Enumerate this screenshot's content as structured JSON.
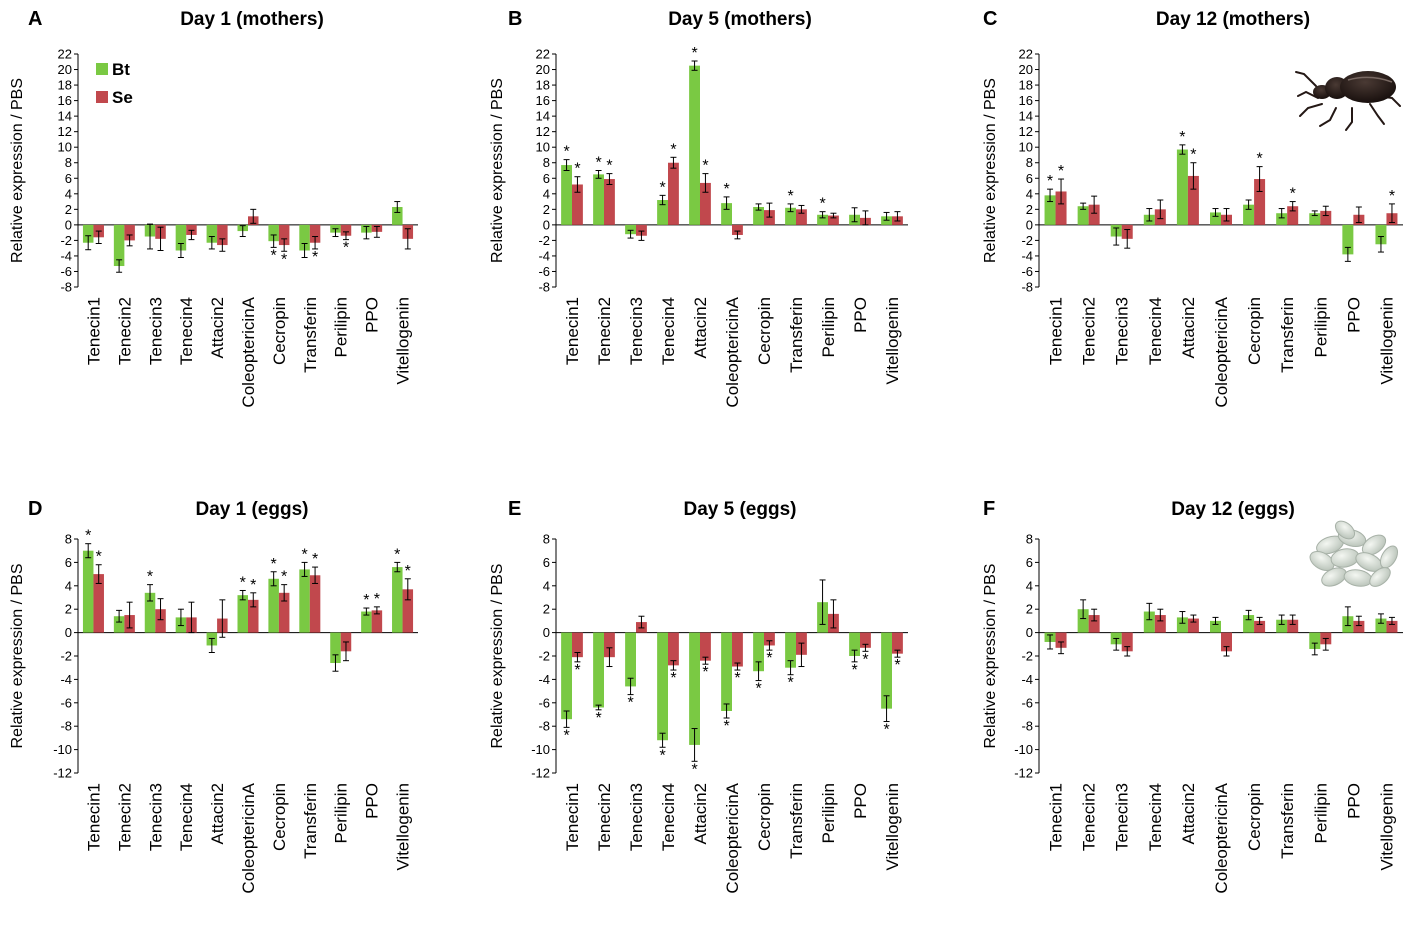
{
  "figure": {
    "colors": {
      "Bt": "#7ac943",
      "Se": "#c1484d",
      "axis": "#000000",
      "error": "#000000"
    },
    "legend": {
      "placement": "top-left of panel A",
      "entries": [
        "Bt",
        "Se"
      ]
    },
    "significance_marker": "*",
    "icons": {
      "panel_C": "beetle-icon",
      "panel_F": "eggs-icon"
    }
  },
  "chart_data": [
    {
      "panel": "A",
      "type": "bar",
      "title": "Day 1 (mothers)",
      "ylabel": "Relative expression / PBS",
      "xlabel": "",
      "ylim": [
        -8,
        22
      ],
      "yticks": [
        -8,
        -6,
        -4,
        -2,
        0,
        2,
        4,
        6,
        8,
        10,
        12,
        14,
        16,
        18,
        20,
        22
      ],
      "categories": [
        "Tenecin1",
        "Tenecin2",
        "Tenecin3",
        "Tenecin4",
        "Attacin2",
        "ColeoptericinA",
        "Cecropin",
        "Transferin",
        "Perilipin",
        "PPO",
        "Vitellogenin"
      ],
      "series": [
        {
          "name": "Bt",
          "values": [
            -2.3,
            -5.3,
            -1.5,
            -3.3,
            -2.3,
            -0.8,
            -2.1,
            -3.3,
            -1.0,
            -1.0,
            2.3
          ],
          "errors": [
            0.9,
            0.8,
            1.6,
            0.9,
            0.8,
            0.7,
            0.8,
            0.9,
            0.5,
            0.8,
            0.7
          ],
          "significant": [
            false,
            false,
            false,
            false,
            false,
            false,
            true,
            false,
            false,
            false,
            false
          ]
        },
        {
          "name": "Se",
          "values": [
            -1.6,
            -2.0,
            -1.8,
            -1.3,
            -2.6,
            1.1,
            -2.6,
            -2.3,
            -1.4,
            -0.9,
            -1.8
          ],
          "errors": [
            0.8,
            0.7,
            1.5,
            0.6,
            0.8,
            0.9,
            0.8,
            0.8,
            0.5,
            0.7,
            1.3
          ],
          "significant": [
            false,
            false,
            false,
            false,
            false,
            false,
            true,
            true,
            true,
            false,
            false
          ]
        }
      ]
    },
    {
      "panel": "B",
      "type": "bar",
      "title": "Day 5 (mothers)",
      "ylabel": "Relative expression / PBS",
      "xlabel": "",
      "ylim": [
        -8,
        22
      ],
      "yticks": [
        -8,
        -6,
        -4,
        -2,
        0,
        2,
        4,
        6,
        8,
        10,
        12,
        14,
        16,
        18,
        20,
        22
      ],
      "categories": [
        "Tenecin1",
        "Tenecin2",
        "Tenecin3",
        "Tenecin4",
        "Attacin2",
        "ColeoptericinA",
        "Cecropin",
        "Transferin",
        "Perilipin",
        "PPO",
        "Vitellogenin"
      ],
      "series": [
        {
          "name": "Bt",
          "values": [
            7.7,
            6.5,
            -1.2,
            3.2,
            20.5,
            2.8,
            2.3,
            2.2,
            1.3,
            1.3,
            1.1
          ],
          "errors": [
            0.7,
            0.5,
            0.5,
            0.6,
            0.6,
            0.8,
            0.4,
            0.5,
            0.4,
            0.9,
            0.5
          ],
          "significant": [
            true,
            true,
            false,
            true,
            true,
            true,
            false,
            true,
            true,
            false,
            false
          ]
        },
        {
          "name": "Se",
          "values": [
            5.2,
            5.9,
            -1.4,
            8.0,
            5.4,
            -1.3,
            1.9,
            2.0,
            1.2,
            0.9,
            1.1
          ],
          "errors": [
            1.0,
            0.7,
            0.6,
            0.7,
            1.2,
            0.5,
            0.9,
            0.5,
            0.3,
            0.9,
            0.6
          ],
          "significant": [
            true,
            true,
            false,
            true,
            true,
            false,
            false,
            false,
            false,
            false,
            false
          ]
        }
      ]
    },
    {
      "panel": "C",
      "type": "bar",
      "title": "Day 12 (mothers)",
      "ylabel": "Relative expression / PBS",
      "xlabel": "",
      "ylim": [
        -8,
        22
      ],
      "yticks": [
        -8,
        -6,
        -4,
        -2,
        0,
        2,
        4,
        6,
        8,
        10,
        12,
        14,
        16,
        18,
        20,
        22
      ],
      "categories": [
        "Tenecin1",
        "Tenecin2",
        "Tenecin3",
        "Tenecin4",
        "Attacin2",
        "ColeoptericinA",
        "Cecropin",
        "Transferin",
        "Perilipin",
        "PPO",
        "Vitellogenin"
      ],
      "series": [
        {
          "name": "Bt",
          "values": [
            3.8,
            2.4,
            -1.5,
            1.3,
            9.7,
            1.6,
            2.6,
            1.5,
            1.5,
            -3.8,
            -2.5
          ],
          "errors": [
            0.8,
            0.4,
            1.1,
            0.8,
            0.6,
            0.5,
            0.6,
            0.6,
            0.3,
            0.9,
            1.0
          ],
          "significant": [
            true,
            false,
            false,
            false,
            true,
            false,
            false,
            false,
            false,
            false,
            false
          ]
        },
        {
          "name": "Se",
          "values": [
            4.3,
            2.6,
            -1.8,
            2.0,
            6.3,
            1.3,
            5.9,
            2.4,
            1.8,
            1.3,
            1.5
          ],
          "errors": [
            1.6,
            1.1,
            1.2,
            1.2,
            1.7,
            0.8,
            1.6,
            0.6,
            0.6,
            1.0,
            1.2
          ],
          "significant": [
            true,
            false,
            false,
            false,
            true,
            false,
            true,
            true,
            false,
            false,
            true
          ]
        }
      ]
    },
    {
      "panel": "D",
      "type": "bar",
      "title": "Day 1 (eggs)",
      "ylabel": "Relative expression / PBS",
      "xlabel": "",
      "ylim": [
        -12,
        8
      ],
      "yticks": [
        -12,
        -10,
        -8,
        -6,
        -4,
        -2,
        0,
        2,
        4,
        6,
        8
      ],
      "categories": [
        "Tenecin1",
        "Tenecin2",
        "Tenecin3",
        "Tenecin4",
        "Attacin2",
        "ColeoptericinA",
        "Cecropin",
        "Transferin",
        "Perilipin",
        "PPO",
        "Vitellogenin"
      ],
      "series": [
        {
          "name": "Bt",
          "values": [
            7.0,
            1.4,
            3.4,
            1.3,
            -1.1,
            3.2,
            4.6,
            5.4,
            -2.6,
            1.8,
            5.6
          ],
          "errors": [
            0.6,
            0.5,
            0.7,
            0.7,
            0.6,
            0.4,
            0.6,
            0.6,
            0.7,
            0.3,
            0.4
          ],
          "significant": [
            true,
            false,
            true,
            false,
            false,
            true,
            true,
            true,
            false,
            true,
            true
          ]
        },
        {
          "name": "Se",
          "values": [
            5.0,
            1.5,
            2.0,
            1.3,
            1.2,
            2.8,
            3.4,
            4.9,
            -1.6,
            1.9,
            3.7
          ],
          "errors": [
            0.8,
            1.1,
            0.9,
            1.3,
            1.6,
            0.6,
            0.7,
            0.7,
            0.8,
            0.3,
            0.9
          ],
          "significant": [
            true,
            false,
            false,
            false,
            false,
            true,
            true,
            true,
            false,
            true,
            true
          ]
        }
      ]
    },
    {
      "panel": "E",
      "type": "bar",
      "title": "Day 5 (eggs)",
      "ylabel": "Relative expression / PBS",
      "xlabel": "",
      "ylim": [
        -12,
        8
      ],
      "yticks": [
        -12,
        -10,
        -8,
        -6,
        -4,
        -2,
        0,
        2,
        4,
        6,
        8
      ],
      "categories": [
        "Tenecin1",
        "Tenecin2",
        "Tenecin3",
        "Tenecin4",
        "Attacin2",
        "ColeoptericinA",
        "Cecropin",
        "Transferin",
        "Perilipin",
        "PPO",
        "Vitellogenin"
      ],
      "series": [
        {
          "name": "Bt",
          "values": [
            -7.4,
            -6.4,
            -4.6,
            -9.2,
            -9.6,
            -6.7,
            -3.3,
            -3.0,
            2.6,
            -2.0,
            -6.5
          ],
          "errors": [
            0.7,
            0.2,
            0.7,
            0.6,
            1.4,
            0.6,
            0.8,
            0.6,
            1.9,
            0.5,
            1.1
          ],
          "significant": [
            true,
            true,
            true,
            true,
            true,
            true,
            true,
            true,
            false,
            true,
            true
          ]
        },
        {
          "name": "Se",
          "values": [
            -2.1,
            -2.1,
            0.9,
            -2.8,
            -2.4,
            -2.9,
            -1.1,
            -1.9,
            1.6,
            -1.3,
            -1.8
          ],
          "errors": [
            0.4,
            0.8,
            0.5,
            0.4,
            0.3,
            0.3,
            0.4,
            1.0,
            1.2,
            0.3,
            0.3
          ],
          "significant": [
            true,
            false,
            false,
            true,
            true,
            true,
            true,
            false,
            false,
            true,
            true
          ]
        }
      ]
    },
    {
      "panel": "F",
      "type": "bar",
      "title": "Day 12 (eggs)",
      "ylabel": "Relative expression / PBS",
      "xlabel": "",
      "ylim": [
        -12,
        8
      ],
      "yticks": [
        -12,
        -10,
        -8,
        -6,
        -4,
        -2,
        0,
        2,
        4,
        6,
        8
      ],
      "categories": [
        "Tenecin1",
        "Tenecin2",
        "Tenecin3",
        "Tenecin4",
        "Attacin2",
        "ColeoptericinA",
        "Cecropin",
        "Transferin",
        "Perilipin",
        "PPO",
        "Vitellogenin"
      ],
      "series": [
        {
          "name": "Bt",
          "values": [
            -0.8,
            2.0,
            -1.0,
            1.8,
            1.3,
            1.0,
            1.5,
            1.1,
            -1.4,
            1.4,
            1.2
          ],
          "errors": [
            0.6,
            0.8,
            0.5,
            0.7,
            0.5,
            0.3,
            0.4,
            0.4,
            0.5,
            0.8,
            0.4
          ],
          "significant": [
            false,
            false,
            false,
            false,
            false,
            false,
            false,
            false,
            false,
            false,
            false
          ]
        },
        {
          "name": "Se",
          "values": [
            -1.3,
            1.5,
            -1.6,
            1.5,
            1.2,
            -1.6,
            1.0,
            1.1,
            -1.0,
            1.0,
            1.0
          ],
          "errors": [
            0.5,
            0.5,
            0.4,
            0.5,
            0.3,
            0.4,
            0.3,
            0.4,
            0.5,
            0.4,
            0.3
          ],
          "significant": [
            false,
            false,
            false,
            false,
            false,
            false,
            false,
            false,
            false,
            false,
            false
          ]
        }
      ]
    }
  ]
}
